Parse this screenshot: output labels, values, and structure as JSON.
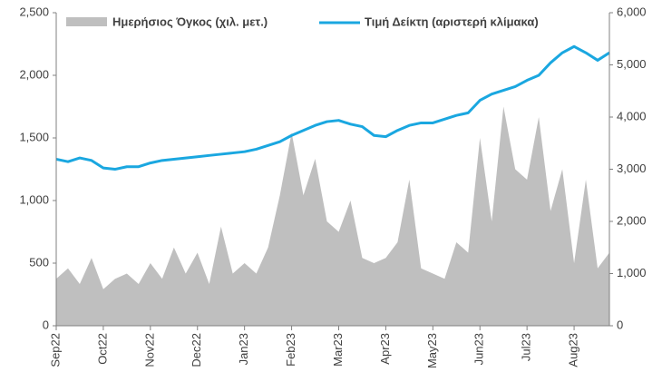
{
  "chart_data": {
    "type": "bar-line-dual",
    "categories": [
      "Sep22",
      null,
      null,
      null,
      "Oct22",
      null,
      null,
      null,
      "Nov22",
      null,
      null,
      null,
      "Dec22",
      null,
      null,
      null,
      "Jan23",
      null,
      null,
      null,
      "Feb23",
      null,
      null,
      null,
      "Mar23",
      null,
      null,
      null,
      "Apr23",
      null,
      null,
      null,
      "May23",
      null,
      null,
      null,
      "Jun23",
      null,
      null,
      null,
      "Jul23",
      null,
      null,
      null,
      "Aug23",
      null,
      null,
      null
    ],
    "series": [
      {
        "name": "Ημερήσιος Όγκος (χιλ. μετ.)",
        "color": "#bfbfbf",
        "axis": "y2",
        "kind": "area",
        "values": [
          900,
          1100,
          800,
          1300,
          700,
          900,
          1000,
          800,
          1200,
          900,
          1500,
          1000,
          1400,
          800,
          1900,
          1000,
          1200,
          1000,
          1500,
          2500,
          3700,
          2500,
          3200,
          2000,
          1800,
          2400,
          1300,
          1200,
          1300,
          1600,
          2800,
          1100,
          1000,
          900,
          1600,
          1400,
          3600,
          2000,
          4200,
          3000,
          2800,
          4000,
          2200,
          3000,
          1200,
          2800,
          1100,
          1400
        ]
      },
      {
        "name": "Τιμή Δείκτη (αριστερή κλίμακα)",
        "color": "#1aa7e0",
        "axis": "y",
        "kind": "line",
        "values": [
          1330,
          1310,
          1340,
          1320,
          1260,
          1250,
          1270,
          1270,
          1300,
          1320,
          1330,
          1340,
          1350,
          1360,
          1370,
          1380,
          1390,
          1410,
          1440,
          1470,
          1520,
          1560,
          1600,
          1630,
          1640,
          1610,
          1590,
          1520,
          1510,
          1560,
          1600,
          1620,
          1620,
          1650,
          1680,
          1700,
          1800,
          1850,
          1880,
          1910,
          1960,
          2000,
          2100,
          2180,
          2230,
          2180,
          2120,
          2180
        ]
      }
    ],
    "ylim": [
      0,
      2500
    ],
    "yticks": [
      0,
      500,
      {
        "value": 1000,
        "label": "1,000"
      },
      {
        "value": 1500,
        "label": "1,500"
      },
      {
        "value": 2000,
        "label": "2,000"
      },
      {
        "value": 2500,
        "label": "2,500"
      }
    ],
    "y2lim": [
      0,
      6000
    ],
    "y2ticks": [
      0,
      {
        "value": 1000,
        "label": "1,000"
      },
      {
        "value": 2000,
        "label": "2,000"
      },
      {
        "value": 3000,
        "label": "3,000"
      },
      {
        "value": 4000,
        "label": "4,000"
      },
      {
        "value": 5000,
        "label": "5,000"
      },
      {
        "value": 6000,
        "label": "6,000"
      }
    ],
    "grid": false
  }
}
